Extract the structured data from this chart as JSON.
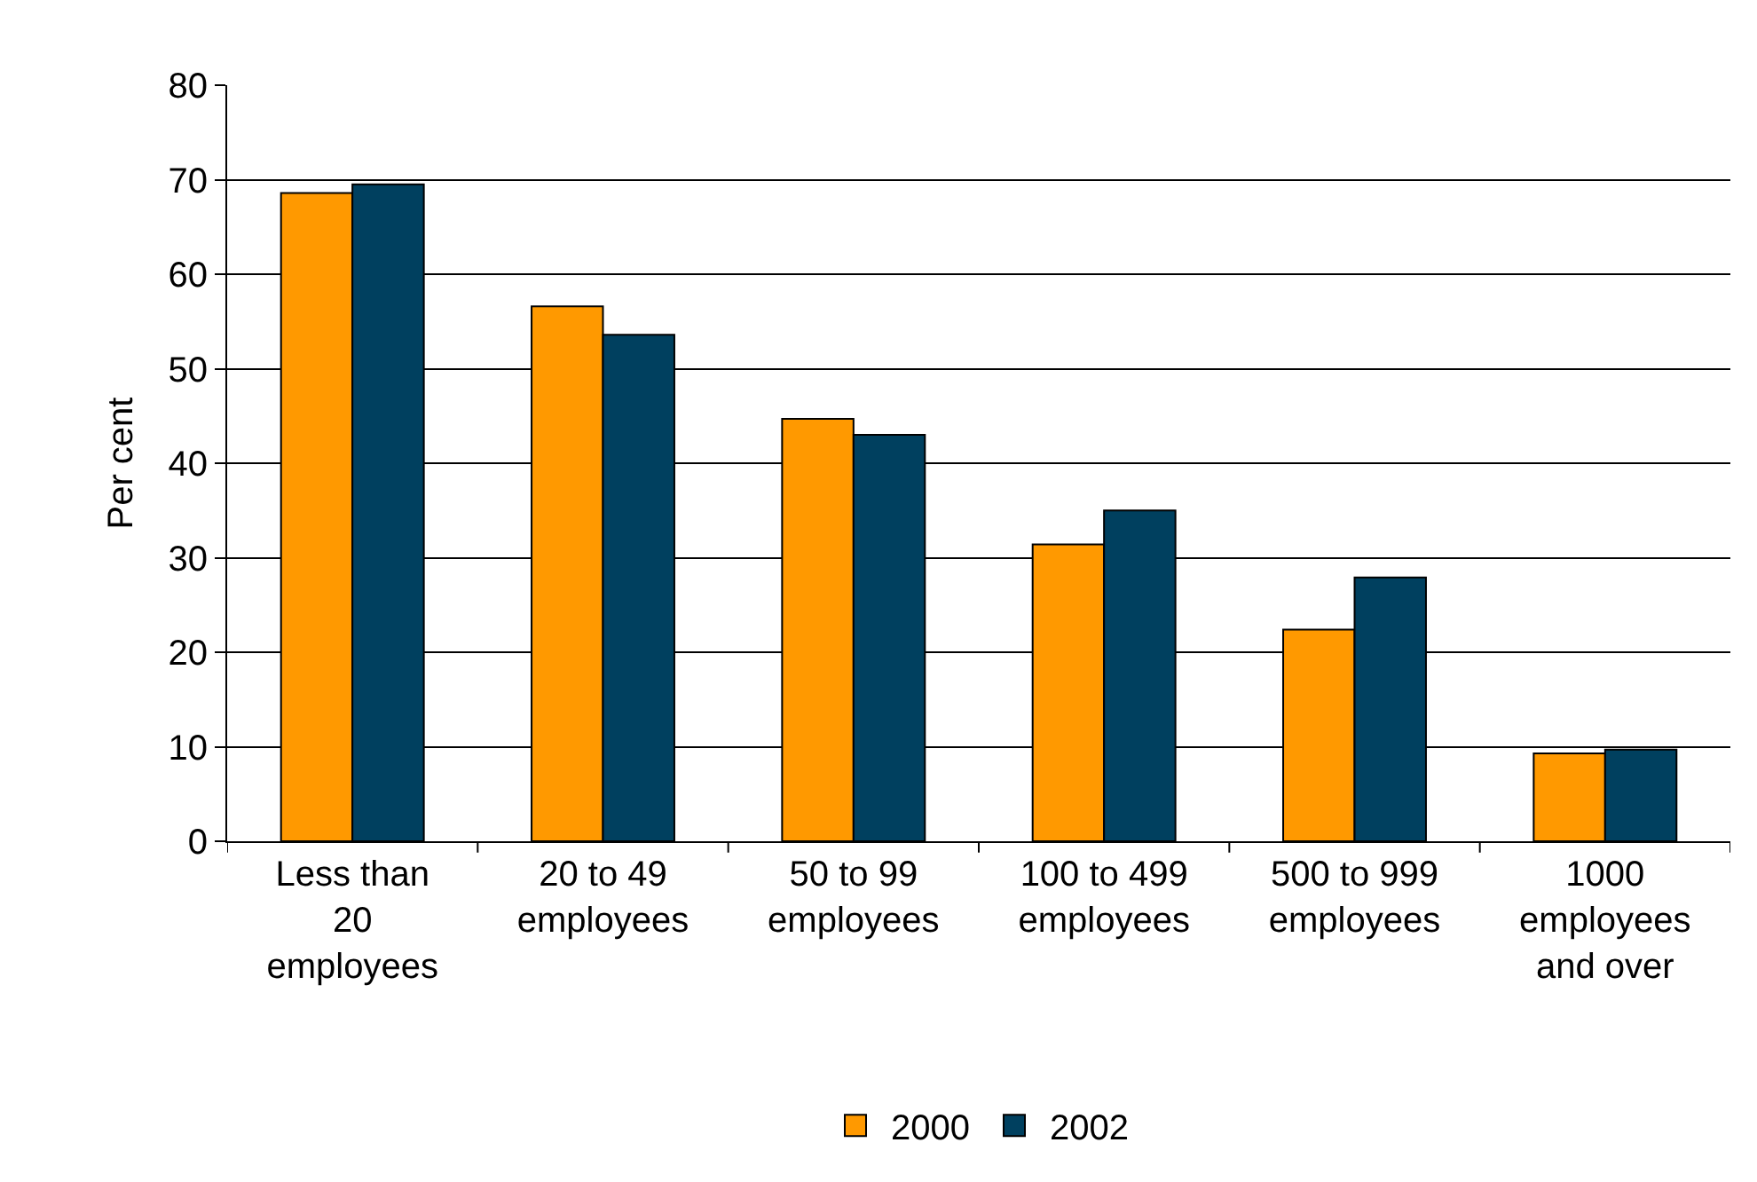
{
  "chart_data": {
    "type": "bar",
    "ylabel": "Per cent",
    "categories": [
      "Less than 20 employees",
      "20 to 49 employees",
      "50 to 99 employees",
      "100 to 499 employees",
      "500 to 999 employees",
      "1000 employees and over"
    ],
    "series": [
      {
        "name": "2000",
        "color": "#ff9900",
        "values": [
          68.6,
          56.6,
          44.7,
          31.4,
          22.4,
          9.3
        ]
      },
      {
        "name": "2002",
        "color": "#00405f",
        "values": [
          69.5,
          53.6,
          43.0,
          35.0,
          27.9,
          9.7
        ]
      }
    ],
    "ylim": [
      0,
      80
    ],
    "yticks": [
      0,
      10,
      20,
      30,
      40,
      50,
      60,
      70,
      80
    ],
    "grid": "y",
    "legend": "bottom"
  }
}
